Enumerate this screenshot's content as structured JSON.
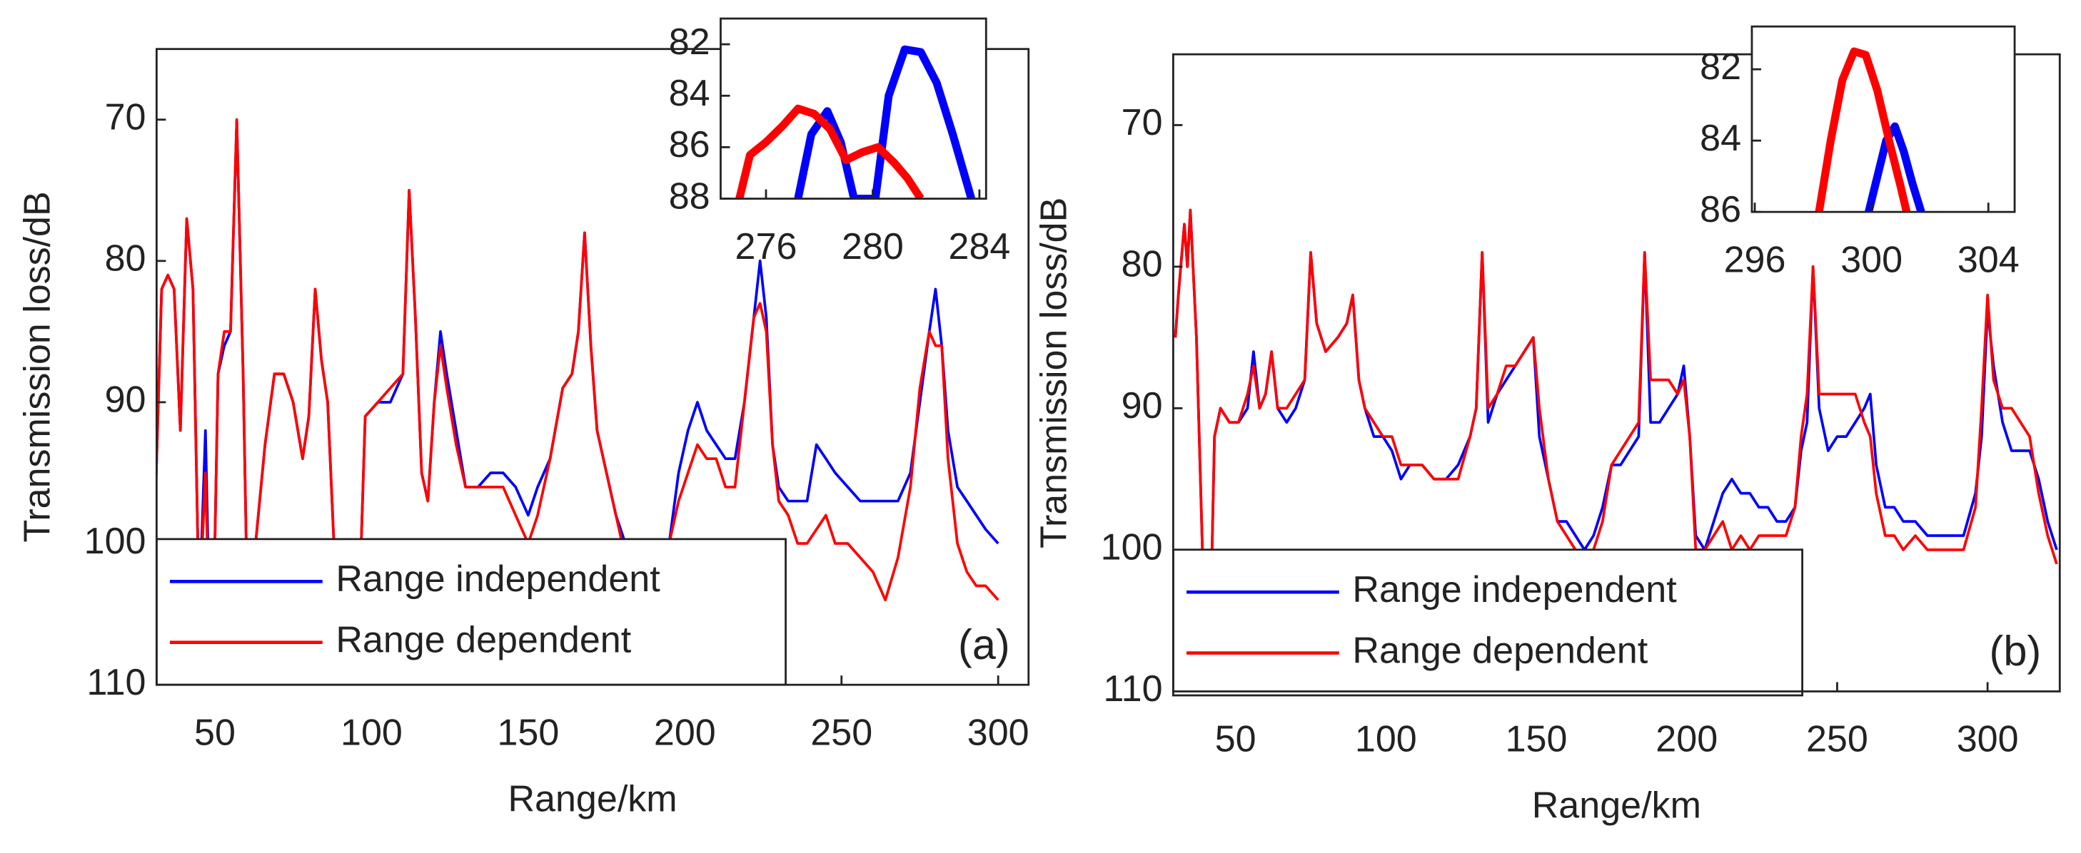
{
  "chart_data": [
    {
      "type": "line",
      "x_label": "Range/km",
      "y_label": "Transmission loss/dB",
      "annotation": "(a)",
      "legend": "lower left",
      "y_reversed": true,
      "xlim": [
        31.4,
        309.7
      ],
      "ylim": [
        65,
        110
      ],
      "xticks": [
        50,
        100,
        150,
        200,
        250,
        300
      ],
      "yticks": [
        70,
        80,
        90,
        100,
        110
      ],
      "x": [
        31,
        33,
        35,
        37,
        39,
        41,
        43,
        45,
        47,
        49,
        51,
        53,
        55,
        57,
        59,
        61,
        63,
        66,
        69,
        72,
        75,
        78,
        80,
        82,
        84,
        86,
        88,
        90,
        95,
        98,
        102,
        106,
        110,
        112,
        114,
        116,
        118,
        120,
        122,
        124,
        127,
        130,
        134,
        138,
        142,
        146,
        150,
        153,
        157,
        161,
        164,
        166,
        168,
        170,
        172,
        175,
        178,
        181,
        184,
        190,
        195,
        198,
        201,
        204,
        207,
        210,
        213,
        216,
        219,
        222,
        224,
        226,
        228,
        230,
        233,
        236,
        239,
        242,
        245,
        248,
        252,
        256,
        260,
        264,
        268,
        272,
        275,
        278,
        280,
        282,
        284,
        287,
        290,
        293,
        296,
        300
      ],
      "series": [
        {
          "name": "Range independent",
          "color": "#0000ff",
          "values": [
            97,
            82,
            81,
            82,
            92,
            77,
            82,
            105,
            92,
            112,
            88,
            86,
            85,
            70,
            88,
            112,
            100,
            93,
            88,
            88,
            90,
            94,
            91,
            82,
            87,
            90,
            100,
            112,
            112,
            91,
            90,
            90,
            88,
            75,
            84,
            95,
            97,
            90,
            85,
            88,
            92,
            96,
            96,
            95,
            95,
            96,
            98,
            96,
            94,
            89,
            88,
            85,
            78,
            86,
            92,
            95,
            98,
            100,
            115,
            115,
            100,
            95,
            92,
            90,
            92,
            93,
            94,
            94,
            90,
            84,
            80,
            84,
            93,
            96,
            97,
            97,
            97,
            93,
            94,
            95,
            96,
            97,
            97,
            97,
            97,
            95,
            90,
            85,
            82,
            86,
            92,
            96,
            97,
            98,
            99,
            100
          ]
        },
        {
          "name": "Range dependent",
          "color": "#ff0000",
          "values": [
            97,
            82,
            81,
            82,
            92,
            77,
            82,
            105,
            95,
            112,
            88,
            85,
            85,
            70,
            88,
            112,
            100,
            93,
            88,
            88,
            90,
            94,
            91,
            82,
            87,
            90,
            100,
            112,
            112,
            91,
            90,
            89,
            88,
            75,
            84,
            95,
            97,
            90,
            86,
            89,
            93,
            96,
            96,
            96,
            96,
            98,
            100,
            98,
            94,
            89,
            88,
            85,
            78,
            86,
            92,
            95,
            98,
            101,
            115,
            115,
            100,
            97,
            95,
            93,
            94,
            94,
            96,
            96,
            90,
            84,
            83,
            85,
            93,
            97,
            98,
            100,
            100,
            99,
            98,
            100,
            100,
            101,
            102,
            104,
            101,
            96,
            89,
            85,
            86,
            86,
            94,
            100,
            102,
            103,
            103,
            104
          ]
        }
      ]
    },
    {
      "type": "line",
      "y_reversed": true,
      "xlim": [
        274.3,
        284.25
      ],
      "ylim": [
        81,
        88
      ],
      "xticks": [
        276,
        280,
        284
      ],
      "yticks": [
        82,
        84,
        86,
        88
      ],
      "series": [
        {
          "name": "Range independent",
          "color": "#0000ff",
          "x": [
            277.2,
            277.7,
            278.3,
            278.8,
            279.3,
            280.1,
            280.6,
            281.2,
            281.8,
            282.4,
            283.0,
            283.7
          ],
          "values": [
            88,
            85.5,
            84.6,
            85.8,
            88,
            88,
            84,
            82.2,
            82.3,
            83.5,
            85.5,
            88
          ]
        },
        {
          "name": "Range dependent",
          "color": "#ff0000",
          "x": [
            275.0,
            275.4,
            276.0,
            276.6,
            277.2,
            277.8,
            278.4,
            279.0,
            279.6,
            280.2,
            280.8,
            281.3,
            281.8
          ],
          "values": [
            88,
            86.3,
            85.8,
            85.2,
            84.5,
            84.7,
            85.3,
            86.5,
            86.2,
            86.0,
            86.6,
            87.2,
            88
          ]
        }
      ]
    },
    {
      "type": "line",
      "x_label": "Range/km",
      "y_label": "Transmission loss/dB",
      "annotation": "(b)",
      "legend": "lower left",
      "y_reversed": true,
      "xlim": [
        29.3,
        324
      ],
      "ylim": [
        65,
        110
      ],
      "xticks": [
        50,
        100,
        150,
        200,
        250,
        300
      ],
      "yticks": [
        70,
        80,
        90,
        100,
        110
      ],
      "x": [
        30,
        31,
        33,
        34,
        35,
        37,
        39,
        41,
        43,
        45,
        48,
        51,
        54,
        56,
        58,
        60,
        62,
        64,
        67,
        70,
        73,
        75,
        77,
        80,
        84,
        87,
        89,
        91,
        93,
        96,
        99,
        102,
        105,
        108,
        112,
        116,
        120,
        124,
        128,
        130,
        132,
        134,
        137,
        140,
        143,
        146,
        149,
        151,
        154,
        157,
        160,
        163,
        166,
        169,
        172,
        175,
        178,
        181,
        184,
        186,
        188,
        191,
        194,
        197,
        199,
        201,
        203,
        206,
        209,
        212,
        215,
        218,
        221,
        224,
        227,
        230,
        233,
        236,
        238,
        240,
        242,
        244,
        247,
        250,
        253,
        256,
        259,
        261,
        263,
        266,
        269,
        272,
        276,
        280,
        284,
        288,
        292,
        296,
        298,
        300,
        302,
        305,
        308,
        311,
        314,
        317,
        320,
        323
      ],
      "series": [
        {
          "name": "Range independent",
          "color": "#0000ff",
          "values": [
            85,
            82,
            77,
            80,
            76,
            85,
            100,
            112,
            92,
            90,
            91,
            91,
            90,
            86,
            90,
            89,
            86,
            90,
            91,
            90,
            88,
            79,
            84,
            86,
            85,
            84,
            82,
            88,
            90,
            92,
            92,
            93,
            95,
            94,
            94,
            95,
            95,
            94,
            92,
            90,
            79,
            91,
            89,
            88,
            87,
            86,
            85,
            92,
            95,
            98,
            98,
            99,
            100,
            99,
            97,
            94,
            94,
            93,
            92,
            79,
            91,
            91,
            90,
            89,
            87,
            92,
            99,
            100,
            98,
            96,
            95,
            96,
            96,
            97,
            97,
            98,
            98,
            97,
            93,
            91,
            80,
            90,
            93,
            92,
            92,
            91,
            90,
            89,
            94,
            97,
            97,
            98,
            98,
            99,
            99,
            99,
            99,
            96,
            92,
            83,
            87,
            91,
            93,
            93,
            93,
            95,
            98,
            100
          ]
        },
        {
          "name": "Range dependent",
          "color": "#ff0000",
          "values": [
            85,
            82,
            77,
            80,
            76,
            85,
            100,
            112,
            92,
            90,
            91,
            91,
            89,
            87,
            90,
            89,
            86,
            90,
            90,
            89,
            88,
            79,
            84,
            86,
            85,
            84,
            82,
            88,
            90,
            91,
            92,
            92,
            94,
            94,
            94,
            95,
            95,
            95,
            92,
            90,
            79,
            90,
            89,
            87,
            87,
            86,
            85,
            90,
            95,
            98,
            99,
            100,
            101,
            100,
            98,
            94,
            93,
            92,
            91,
            79,
            88,
            88,
            88,
            89,
            88,
            92,
            100,
            100,
            99,
            98,
            100,
            99,
            100,
            99,
            99,
            99,
            99,
            97,
            92,
            89,
            80,
            89,
            89,
            89,
            89,
            89,
            91,
            92,
            96,
            99,
            99,
            100,
            99,
            100,
            100,
            100,
            100,
            97,
            90,
            82,
            88,
            90,
            90,
            91,
            92,
            96,
            99,
            101
          ]
        }
      ]
    },
    {
      "type": "line",
      "y_reversed": true,
      "xlim": [
        295.9,
        304.9
      ],
      "ylim": [
        80.8,
        86
      ],
      "xticks": [
        296,
        300,
        304
      ],
      "yticks": [
        82,
        84,
        86
      ],
      "series": [
        {
          "name": "Range independent",
          "color": "#0000ff",
          "x": [
            299.9,
            300.2,
            300.5,
            300.8,
            301.1,
            301.4,
            301.7
          ],
          "values": [
            86,
            85,
            84,
            83.6,
            84.3,
            85.2,
            86
          ]
        },
        {
          "name": "Range dependent",
          "color": "#ff0000",
          "x": [
            298.2,
            298.6,
            299.0,
            299.4,
            299.8,
            300.2,
            300.6,
            301.0,
            301.2
          ],
          "values": [
            86,
            84,
            82.3,
            81.5,
            81.6,
            82.6,
            84,
            85.3,
            86
          ]
        }
      ]
    }
  ]
}
